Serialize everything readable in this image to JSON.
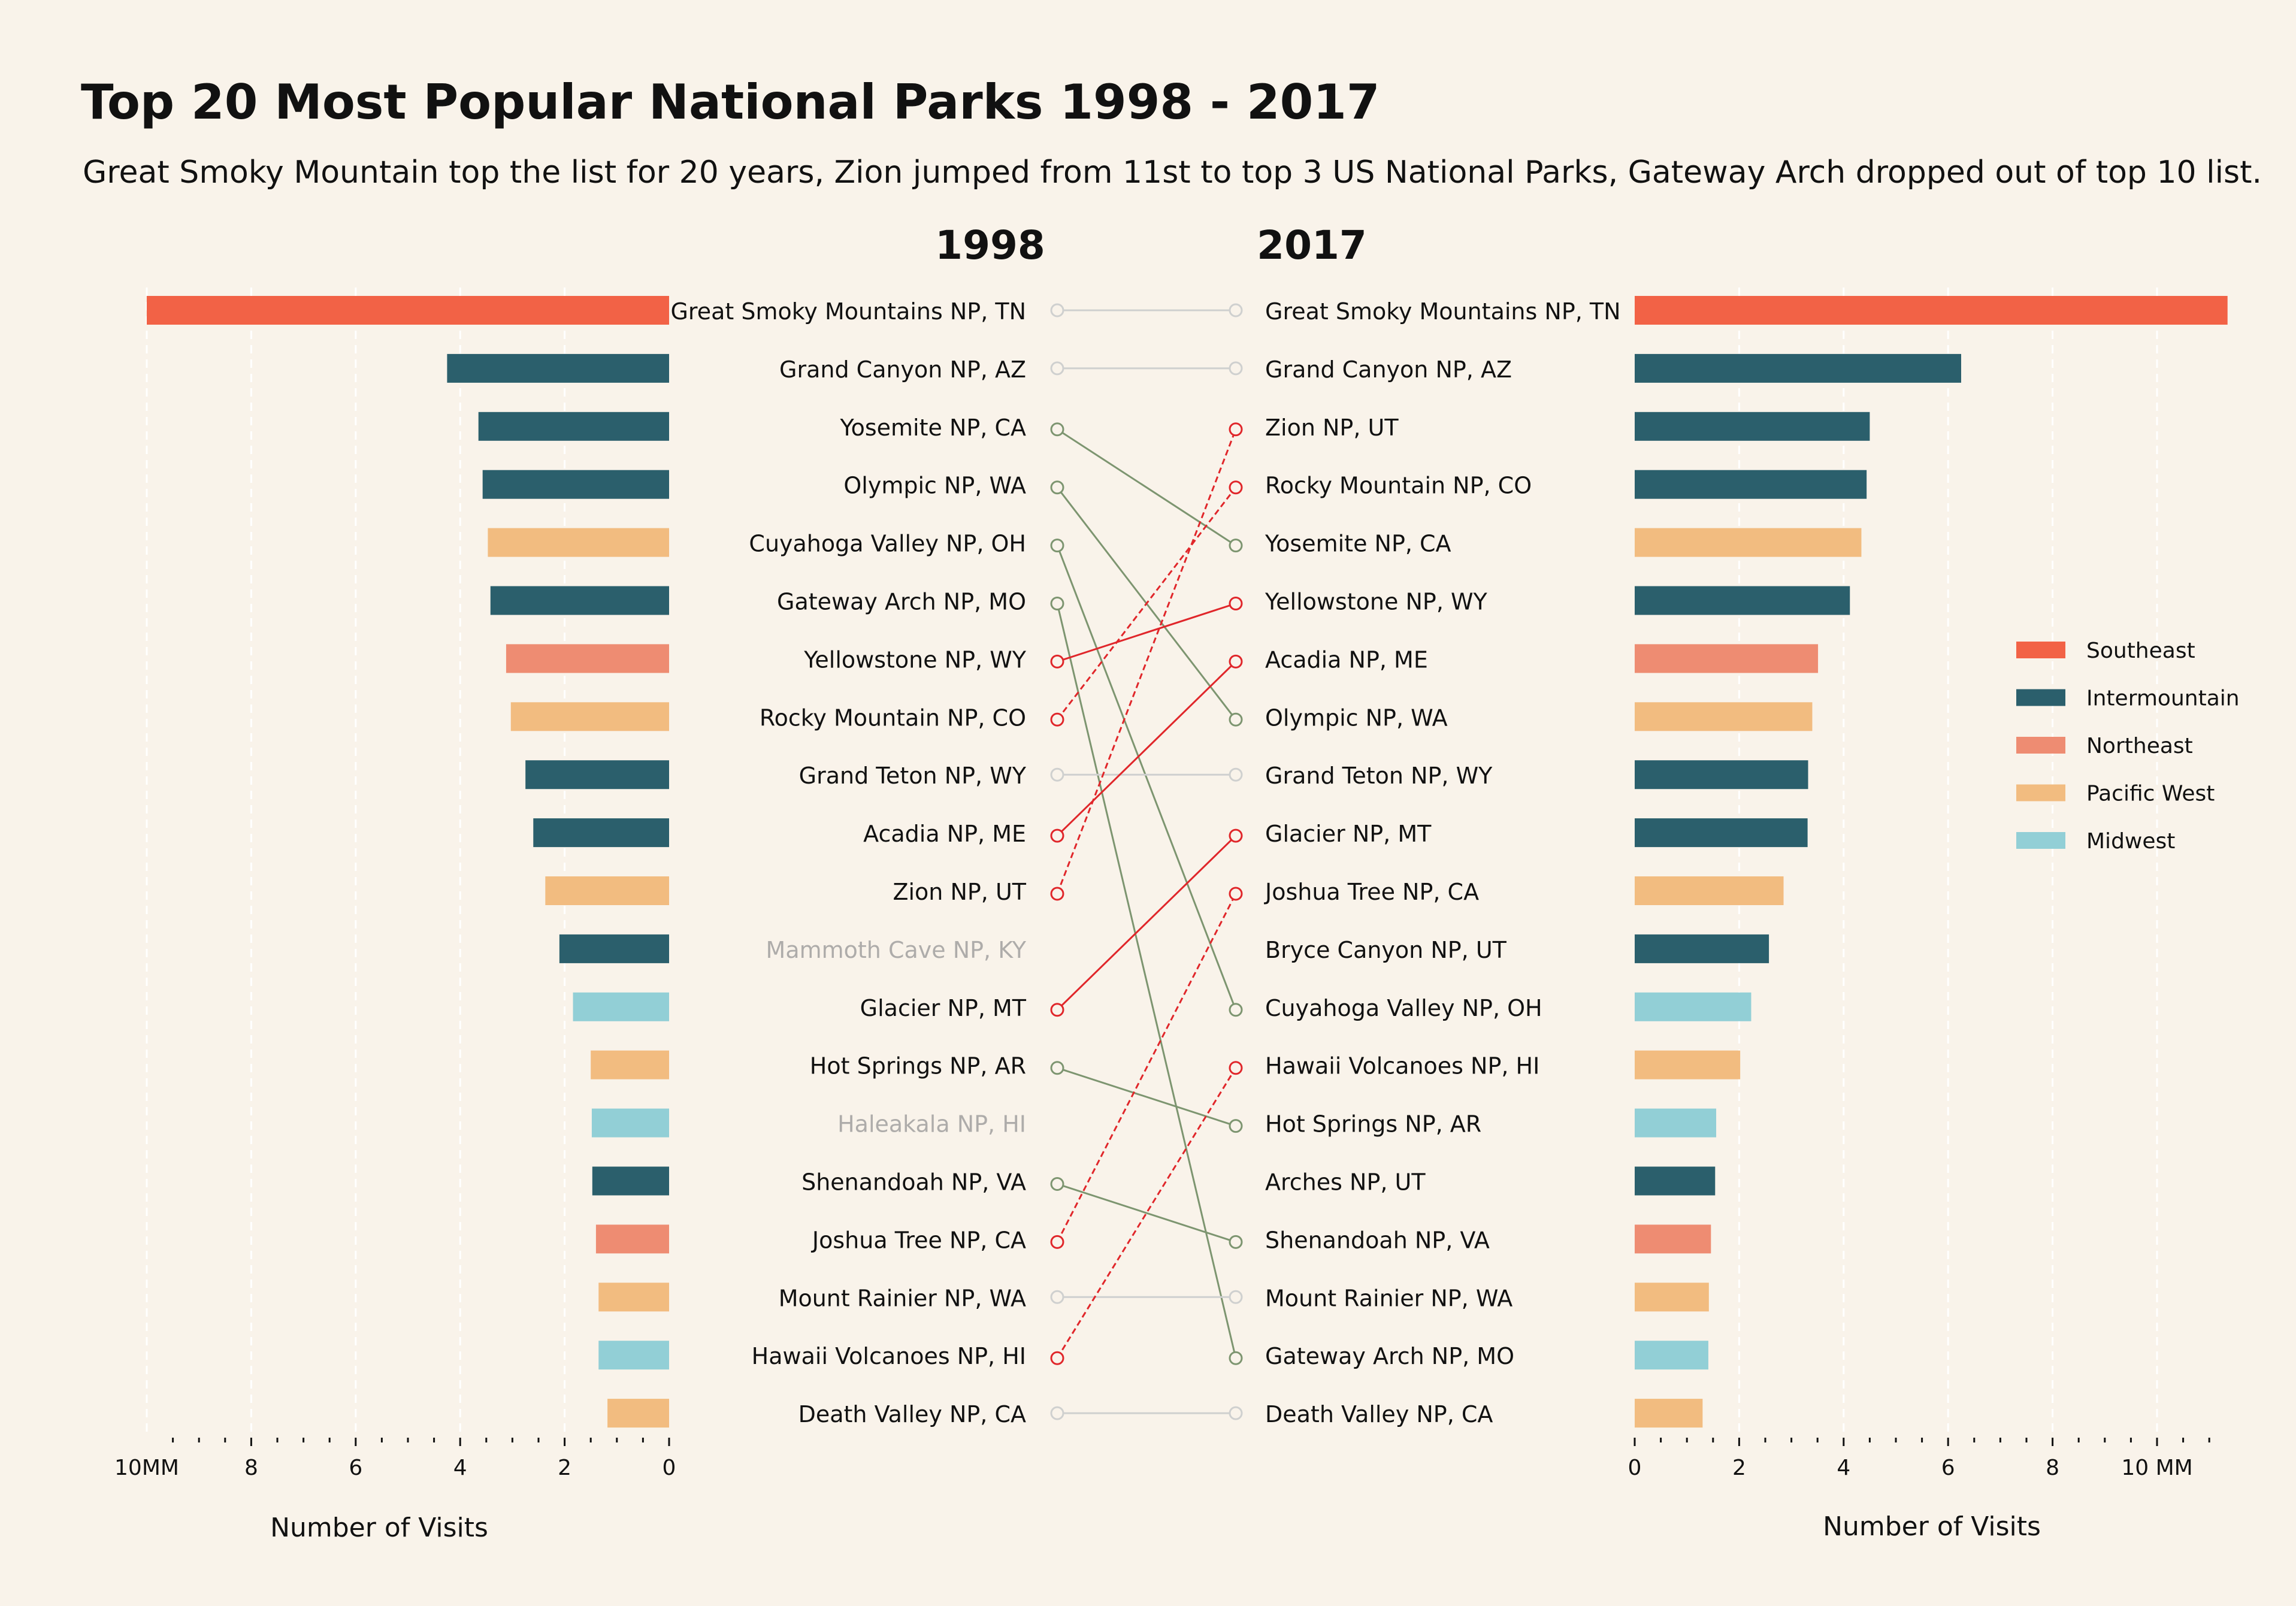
{
  "title": "Top 20 Most Popular National Parks 1998 - 2017",
  "subtitle": "Great Smoky Mountain top the list for 20 years, Zion jumped from 11st to top 3 US National Parks, Gateway Arch dropped out of top 10 list.",
  "chart_data": {
    "type": "bar",
    "year_labels": [
      "1998",
      "2017"
    ],
    "colors": {
      "Southeast": "#f26246",
      "Intermountain": "#2b5f6c",
      "Northeast": "#ee8c72",
      "Pacific West": "#f2bc80",
      "Midwest": "#92cfd6",
      "rise_line": "#e0262a",
      "fall_line": "#7d9570",
      "flat_line": "#cfd0cf",
      "dropped_text": "#aeacaa"
    },
    "legend": {
      "placement": "right",
      "entries": [
        "Southeast",
        "Intermountain",
        "Northeast",
        "Pacific West",
        "Midwest"
      ]
    },
    "left_chart": {
      "year": "1998",
      "xlabel": "Number of Visits",
      "xlim": [
        0,
        11
      ],
      "ticks": [
        {
          "value": 0,
          "label": "0"
        },
        {
          "value": 2,
          "label": "2"
        },
        {
          "value": 4,
          "label": "4"
        },
        {
          "value": 6,
          "label": "6"
        },
        {
          "value": 8,
          "label": "8"
        },
        {
          "value": 10,
          "label": "10MM"
        }
      ],
      "bars": [
        {
          "park": "Great Smoky Mountains NP, TN",
          "value": 10.0,
          "region": "Southeast"
        },
        {
          "park": "Grand Canyon NP, AZ",
          "value": 4.25,
          "region": "Intermountain"
        },
        {
          "park": "Yosemite NP, CA",
          "value": 3.65,
          "region": "Intermountain"
        },
        {
          "park": "Olympic NP, WA",
          "value": 3.57,
          "region": "Intermountain"
        },
        {
          "park": "Cuyahoga Valley NP, OH",
          "value": 3.47,
          "region": "Pacific West"
        },
        {
          "park": "Gateway Arch NP, MO",
          "value": 3.42,
          "region": "Intermountain"
        },
        {
          "park": "Yellowstone NP, WY",
          "value": 3.12,
          "region": "Northeast"
        },
        {
          "park": "Rocky Mountain NP, CO",
          "value": 3.03,
          "region": "Pacific West"
        },
        {
          "park": "Grand Teton NP, WY",
          "value": 2.75,
          "region": "Intermountain"
        },
        {
          "park": "Acadia NP, ME",
          "value": 2.6,
          "region": "Intermountain"
        },
        {
          "park": "Zion NP, UT",
          "value": 2.37,
          "region": "Pacific West"
        },
        {
          "park": "Mammoth Cave NP, KY",
          "value": 2.1,
          "region": "Intermountain",
          "dropped": true
        },
        {
          "park": "Glacier NP, MT",
          "value": 1.84,
          "region": "Midwest"
        },
        {
          "park": "Hot Springs NP, AR",
          "value": 1.5,
          "region": "Pacific West"
        },
        {
          "park": "Haleakala NP, HI",
          "value": 1.48,
          "region": "Midwest",
          "dropped": true
        },
        {
          "park": "Shenandoah NP, VA",
          "value": 1.47,
          "region": "Intermountain"
        },
        {
          "park": "Joshua Tree NP, CA",
          "value": 1.4,
          "region": "Northeast"
        },
        {
          "park": "Mount Rainier NP, WA",
          "value": 1.35,
          "region": "Pacific West"
        },
        {
          "park": "Hawaii Volcanoes NP, HI",
          "value": 1.35,
          "region": "Midwest"
        },
        {
          "park": "Death Valley NP, CA",
          "value": 1.18,
          "region": "Pacific West"
        }
      ]
    },
    "right_chart": {
      "year": "2017",
      "xlabel": "Number of Visits",
      "xlim": [
        0,
        11.35
      ],
      "ticks": [
        {
          "value": 0,
          "label": "0"
        },
        {
          "value": 2,
          "label": "2"
        },
        {
          "value": 4,
          "label": "4"
        },
        {
          "value": 6,
          "label": "6"
        },
        {
          "value": 8,
          "label": "8"
        },
        {
          "value": 10,
          "label": "10 MM"
        }
      ],
      "bars": [
        {
          "park": "Great Smoky Mountains NP, TN",
          "value": 11.35,
          "region": "Southeast"
        },
        {
          "park": "Grand Canyon NP, AZ",
          "value": 6.25,
          "region": "Intermountain"
        },
        {
          "park": "Zion NP, UT",
          "value": 4.5,
          "region": "Intermountain"
        },
        {
          "park": "Rocky Mountain NP, CO",
          "value": 4.44,
          "region": "Intermountain"
        },
        {
          "park": "Yosemite NP, CA",
          "value": 4.34,
          "region": "Pacific West"
        },
        {
          "park": "Yellowstone NP, WY",
          "value": 4.12,
          "region": "Intermountain"
        },
        {
          "park": "Acadia NP, ME",
          "value": 3.51,
          "region": "Northeast"
        },
        {
          "park": "Olympic NP, WA",
          "value": 3.4,
          "region": "Pacific West"
        },
        {
          "park": "Grand Teton NP, WY",
          "value": 3.32,
          "region": "Intermountain"
        },
        {
          "park": "Glacier NP, MT",
          "value": 3.31,
          "region": "Intermountain"
        },
        {
          "park": "Joshua Tree NP, CA",
          "value": 2.85,
          "region": "Pacific West"
        },
        {
          "park": "Bryce Canyon NP, UT",
          "value": 2.57,
          "region": "Intermountain"
        },
        {
          "park": "Cuyahoga Valley NP, OH",
          "value": 2.23,
          "region": "Midwest"
        },
        {
          "park": "Hawaii Volcanoes NP, HI",
          "value": 2.02,
          "region": "Pacific West"
        },
        {
          "park": "Hot Springs NP, AR",
          "value": 1.56,
          "region": "Midwest"
        },
        {
          "park": "Arches NP, UT",
          "value": 1.54,
          "region": "Intermountain"
        },
        {
          "park": "Shenandoah NP, VA",
          "value": 1.46,
          "region": "Northeast"
        },
        {
          "park": "Mount Rainier NP, WA",
          "value": 1.42,
          "region": "Pacific West"
        },
        {
          "park": "Gateway Arch NP, MO",
          "value": 1.41,
          "region": "Midwest"
        },
        {
          "park": "Death Valley NP, CA",
          "value": 1.3,
          "region": "Pacific West"
        }
      ]
    }
  }
}
